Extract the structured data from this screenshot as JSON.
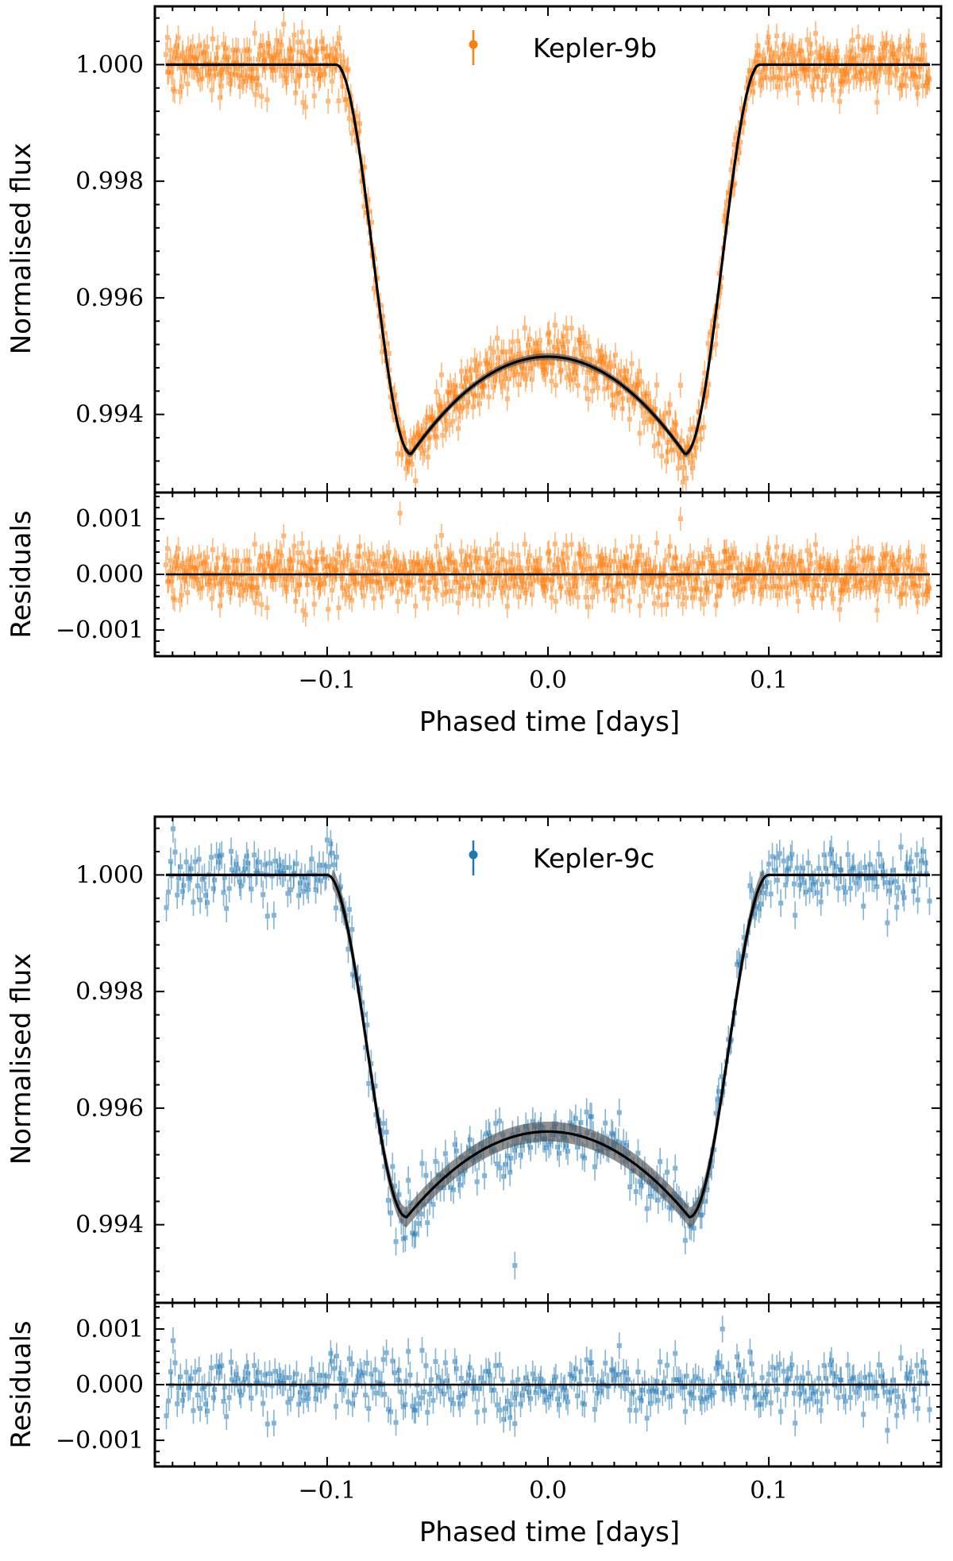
{
  "chart_data": [
    {
      "type": "scatter",
      "planet": "Kepler-9b",
      "legend": "Kepler-9b",
      "color": "#ff7f0e",
      "model_color": "#000000",
      "xlabel": "Phased time [days]",
      "flux_panel": {
        "ylabel": "Normalised flux",
        "xlim": [
          -0.178,
          0.178
        ],
        "ylim": [
          0.99266,
          1.001
        ],
        "yticks": [
          1.0,
          0.998,
          0.996,
          0.994
        ],
        "ytick_labels": [
          "1.000",
          "0.998",
          "0.996",
          "0.994"
        ],
        "model": {
          "depth": 0.00668,
          "t_total": 0.096,
          "t_flat": 0.062,
          "band_width": 6e-05
        },
        "scatter_sigma": 0.00025,
        "n_points": 900,
        "outliers": [
          {
            "x": -0.042,
            "y": 0.9945
          },
          {
            "x": 0.06,
            "y": 0.9945
          }
        ]
      },
      "residual_panel": {
        "ylabel": "Residuals",
        "ylim": [
          -0.00147,
          0.00147
        ],
        "yticks": [
          0.001,
          0.0,
          -0.001
        ],
        "ytick_labels": [
          "0.001",
          "0.000",
          "−0.001"
        ],
        "outliers": [
          {
            "x": -0.067,
            "y": 0.0011
          },
          {
            "x": 0.06,
            "y": 0.001
          }
        ]
      },
      "xticks": [
        -0.1,
        0.0,
        0.1
      ],
      "xtick_labels": [
        "−0.1",
        "0.0",
        "0.1"
      ]
    },
    {
      "type": "scatter",
      "planet": "Kepler-9c",
      "legend": "Kepler-9c",
      "color": "#1f77b4",
      "model_color": "#000000",
      "xlabel": "Phased time [days]",
      "flux_panel": {
        "ylabel": "Normalised flux",
        "xlim": [
          -0.178,
          0.178
        ],
        "ylim": [
          0.99266,
          1.001
        ],
        "yticks": [
          1.0,
          0.998,
          0.996,
          0.994
        ],
        "ytick_labels": [
          "1.000",
          "0.998",
          "0.996",
          "0.994"
        ],
        "model": {
          "depth": 0.00587,
          "t_total": 0.1,
          "t_flat": 0.064,
          "band_width": 0.00017
        },
        "scatter_sigma": 0.00028,
        "n_points": 430,
        "outliers": [
          {
            "x": -0.1,
            "y": 1.0006
          },
          {
            "x": -0.015,
            "y": 0.9933
          }
        ]
      },
      "residual_panel": {
        "ylabel": "Residuals",
        "ylim": [
          -0.00147,
          0.00147
        ],
        "yticks": [
          0.001,
          0.0,
          -0.001
        ],
        "ytick_labels": [
          "0.001",
          "0.000",
          "−0.001"
        ],
        "outliers": [
          {
            "x": 0.079,
            "y": 0.001
          },
          {
            "x": -0.015,
            "y": -0.0007
          }
        ]
      },
      "xticks": [
        -0.1,
        0.0,
        0.1
      ],
      "xtick_labels": [
        "−0.1",
        "0.0",
        "0.1"
      ]
    }
  ]
}
